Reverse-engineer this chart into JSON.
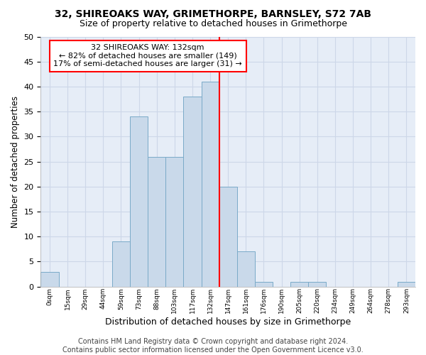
{
  "title1": "32, SHIREOAKS WAY, GRIMETHORPE, BARNSLEY, S72 7AB",
  "title2": "Size of property relative to detached houses in Grimethorpe",
  "xlabel": "Distribution of detached houses by size in Grimethorpe",
  "ylabel": "Number of detached properties",
  "footnote": "Contains HM Land Registry data © Crown copyright and database right 2024.\nContains public sector information licensed under the Open Government Licence v3.0.",
  "bin_labels": [
    "0sqm",
    "15sqm",
    "29sqm",
    "44sqm",
    "59sqm",
    "73sqm",
    "88sqm",
    "103sqm",
    "117sqm",
    "132sqm",
    "147sqm",
    "161sqm",
    "176sqm",
    "190sqm",
    "205sqm",
    "220sqm",
    "234sqm",
    "249sqm",
    "264sqm",
    "278sqm",
    "293sqm"
  ],
  "bar_heights": [
    3,
    0,
    0,
    0,
    9,
    34,
    26,
    26,
    38,
    41,
    20,
    7,
    1,
    0,
    1,
    1,
    0,
    0,
    0,
    0,
    1
  ],
  "bar_color": "#c9d9ea",
  "bar_edge_color": "#7aaac8",
  "red_line_index": 9,
  "annotation_text": "32 SHIREOAKS WAY: 132sqm\n← 82% of detached houses are smaller (149)\n17% of semi-detached houses are larger (31) →",
  "annotation_box_color": "white",
  "annotation_box_edge": "red",
  "red_line_color": "red",
  "ylim": [
    0,
    50
  ],
  "yticks": [
    0,
    5,
    10,
    15,
    20,
    25,
    30,
    35,
    40,
    45,
    50
  ],
  "grid_color": "#cdd7e8",
  "bg_color": "#e6edf7",
  "title1_fontsize": 10,
  "title2_fontsize": 9,
  "xlabel_fontsize": 9,
  "ylabel_fontsize": 8.5,
  "footnote_fontsize": 7,
  "annotation_fontsize": 8,
  "bar_width": 1.0
}
